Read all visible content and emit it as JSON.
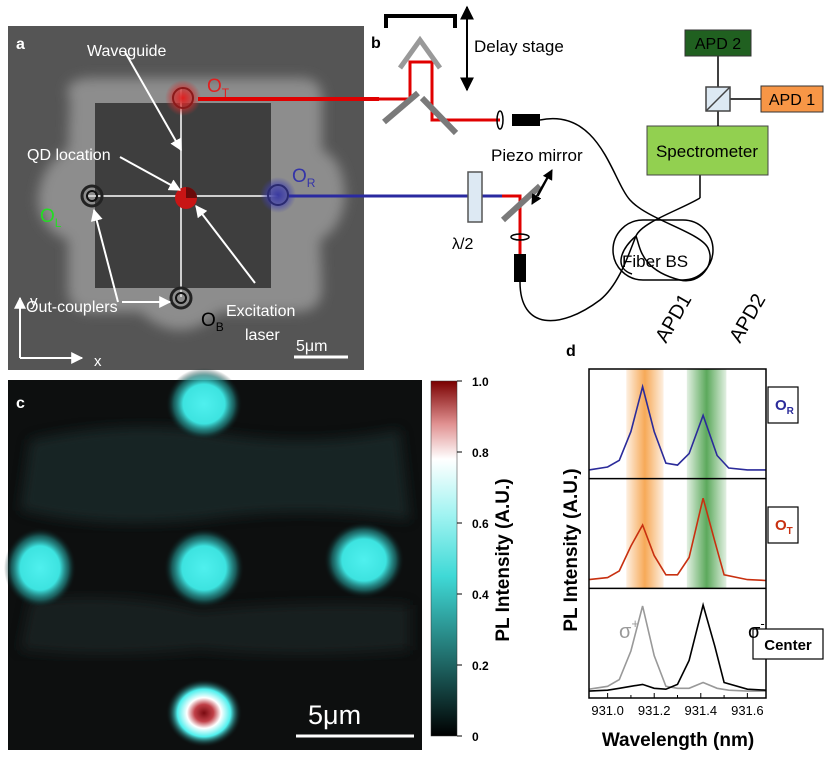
{
  "panel_a": {
    "letter": "a",
    "waveguide": "Waveguide",
    "qd_location": "QD location",
    "out_couplers": "Out-couplers",
    "excitation_l1": "Excitation",
    "excitation_l2": "laser",
    "o_t": {
      "main": "O",
      "sub": "T"
    },
    "o_r": {
      "main": "O",
      "sub": "R"
    },
    "o_l": {
      "main": "O",
      "sub": "L"
    },
    "o_b": {
      "main": "O",
      "sub": "B"
    },
    "axis_y": "y",
    "axis_x": "x",
    "scale": "5μm"
  },
  "panel_b": {
    "letter": "b",
    "delay_stage": "Delay stage",
    "apd2": "APD 2",
    "apd1": "APD 1",
    "spectrometer": "Spectrometer",
    "piezo_mirror": "Piezo mirror",
    "half_wave": "λ/2",
    "fiber_bs": "Fiber BS"
  },
  "panel_c": {
    "letter": "c",
    "scale": "5μm",
    "colorbar_label": "PL Intensity (A.U.)",
    "colorbar_ticks": [
      "1.0",
      "0.8",
      "0.6",
      "0.4",
      "0.2",
      "0"
    ]
  },
  "panel_d": {
    "letter": "d",
    "apd1": "APD1",
    "apd2": "APD2",
    "ylabel": "PL Intensity (A.U.)",
    "xlabel": "Wavelength (nm)",
    "label_or": {
      "main": "O",
      "sub": "R"
    },
    "label_ot": {
      "main": "O",
      "sub": "T"
    },
    "label_center": "Center",
    "sigma_plus": {
      "main": "σ",
      "sup": "+"
    },
    "sigma_minus": {
      "main": "σ",
      "sup": "-"
    },
    "colors": {
      "or": "#2b2b9a",
      "ot": "#c83010",
      "sigma_plus": "#999999",
      "sigma_minus": "#000000",
      "apd1_band": "#f59a3a",
      "apd2_band": "#3f9a3f"
    }
  },
  "chart_data": {
    "type": "line",
    "xlabel": "Wavelength (nm)",
    "ylabel": "PL Intensity (A.U.)",
    "x_ticks": [
      "931.0",
      "931.2",
      "931.4",
      "931.6"
    ],
    "xlim": [
      930.92,
      931.68
    ],
    "bands": [
      {
        "name": "APD1",
        "range": [
          931.08,
          931.24
        ]
      },
      {
        "name": "APD2",
        "range": [
          931.34,
          931.51
        ]
      }
    ],
    "subplots": [
      {
        "label": "O_R",
        "series": [
          {
            "values": [
              [
                930.92,
                0.05
              ],
              [
                931.0,
                0.08
              ],
              [
                931.05,
                0.15
              ],
              [
                931.1,
                0.45
              ],
              [
                931.15,
                0.92
              ],
              [
                931.2,
                0.45
              ],
              [
                931.25,
                0.12
              ],
              [
                931.3,
                0.1
              ],
              [
                931.35,
                0.22
              ],
              [
                931.41,
                0.62
              ],
              [
                931.47,
                0.2
              ],
              [
                931.52,
                0.07
              ],
              [
                931.6,
                0.05
              ],
              [
                931.68,
                0.05
              ]
            ]
          }
        ]
      },
      {
        "label": "O_T",
        "series": [
          {
            "values": [
              [
                930.92,
                0.05
              ],
              [
                931.0,
                0.07
              ],
              [
                931.05,
                0.14
              ],
              [
                931.1,
                0.4
              ],
              [
                931.15,
                0.62
              ],
              [
                931.2,
                0.3
              ],
              [
                931.25,
                0.1
              ],
              [
                931.3,
                0.1
              ],
              [
                931.35,
                0.28
              ],
              [
                931.41,
                0.9
              ],
              [
                931.46,
                0.45
              ],
              [
                931.5,
                0.1
              ],
              [
                931.6,
                0.05
              ],
              [
                931.68,
                0.04
              ]
            ]
          }
        ]
      },
      {
        "label": "Center",
        "series": [
          {
            "name": "σ+",
            "values": [
              [
                930.92,
                0.05
              ],
              [
                931.0,
                0.08
              ],
              [
                931.05,
                0.15
              ],
              [
                931.1,
                0.45
              ],
              [
                931.15,
                0.92
              ],
              [
                931.2,
                0.4
              ],
              [
                931.25,
                0.08
              ],
              [
                931.3,
                0.06
              ],
              [
                931.35,
                0.06
              ],
              [
                931.41,
                0.12
              ],
              [
                931.47,
                0.06
              ],
              [
                931.52,
                0.04
              ],
              [
                931.6,
                0.03
              ],
              [
                931.68,
                0.03
              ]
            ]
          },
          {
            "name": "σ-",
            "values": [
              [
                930.92,
                0.03
              ],
              [
                931.0,
                0.04
              ],
              [
                931.05,
                0.06
              ],
              [
                931.1,
                0.08
              ],
              [
                931.15,
                0.1
              ],
              [
                931.2,
                0.06
              ],
              [
                931.25,
                0.05
              ],
              [
                931.3,
                0.1
              ],
              [
                931.35,
                0.35
              ],
              [
                931.41,
                0.93
              ],
              [
                931.46,
                0.5
              ],
              [
                931.5,
                0.12
              ],
              [
                931.6,
                0.05
              ],
              [
                931.68,
                0.04
              ]
            ]
          }
        ]
      }
    ]
  }
}
